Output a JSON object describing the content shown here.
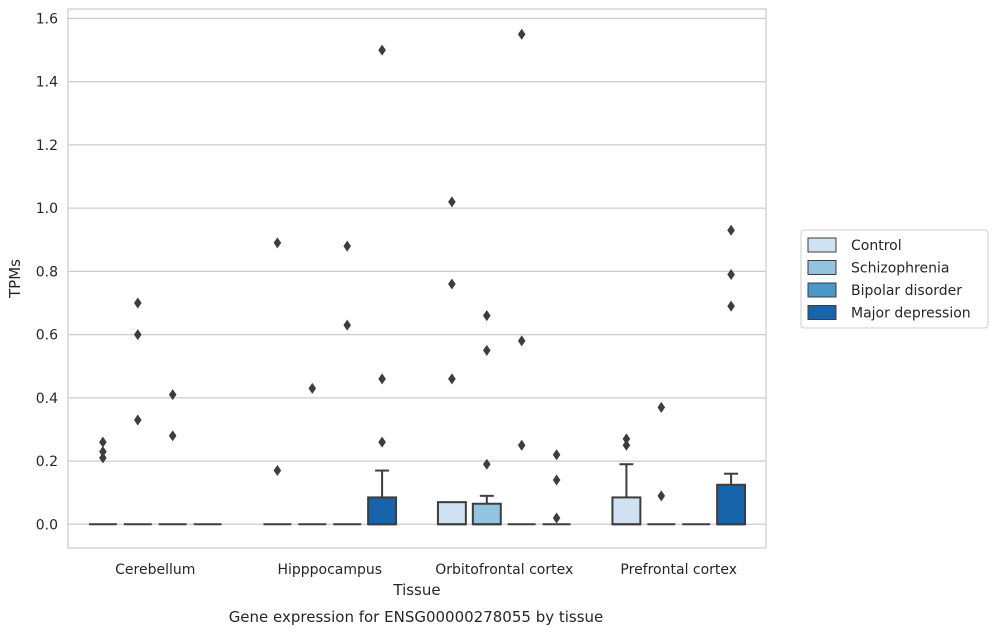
{
  "chart_data": {
    "type": "box",
    "title": "",
    "caption": "Gene expression for ENSG00000278055 by tissue",
    "xlabel": "Tissue",
    "ylabel": "TPMs",
    "ylim": [
      -0.075,
      1.63
    ],
    "yticks": [
      "0.0",
      "0.2",
      "0.4",
      "0.6",
      "0.8",
      "1.0",
      "1.2",
      "1.4",
      "1.6"
    ],
    "grid": "horizontal",
    "legend_position": "right",
    "categories": [
      "Cerebellum",
      "Hipppocampus",
      "Orbitofrontal cortex",
      "Prefrontal cortex"
    ],
    "series": [
      {
        "name": "Control",
        "color": "#d0e1f2",
        "boxes": [
          {
            "q1": 0,
            "median": 0,
            "q3": 0,
            "whisker_low": 0,
            "whisker_high": 0,
            "outliers": [
              0.21,
              0.23,
              0.26
            ]
          },
          {
            "q1": 0,
            "median": 0,
            "q3": 0,
            "whisker_low": 0,
            "whisker_high": 0,
            "outliers": [
              0.17,
              0.89
            ]
          },
          {
            "q1": 0,
            "median": 0,
            "q3": 0.07,
            "whisker_low": 0,
            "whisker_high": 0.07,
            "outliers": [
              0.46,
              0.76,
              1.02
            ]
          },
          {
            "q1": 0,
            "median": 0,
            "q3": 0.085,
            "whisker_low": 0,
            "whisker_high": 0.19,
            "outliers": [
              0.25,
              0.27
            ]
          }
        ]
      },
      {
        "name": "Schizophrenia",
        "color": "#94c4df",
        "boxes": [
          {
            "q1": 0,
            "median": 0,
            "q3": 0,
            "whisker_low": 0,
            "whisker_high": 0,
            "outliers": [
              0.33,
              0.6,
              0.7
            ]
          },
          {
            "q1": 0,
            "median": 0,
            "q3": 0,
            "whisker_low": 0,
            "whisker_high": 0,
            "outliers": [
              0.43
            ]
          },
          {
            "q1": 0,
            "median": 0,
            "q3": 0.065,
            "whisker_low": 0,
            "whisker_high": 0.09,
            "outliers": [
              0.19,
              0.55,
              0.66
            ]
          },
          {
            "q1": 0,
            "median": 0,
            "q3": 0,
            "whisker_low": 0,
            "whisker_high": 0,
            "outliers": [
              0.09,
              0.37
            ]
          }
        ]
      },
      {
        "name": "Bipolar disorder",
        "color": "#4a98c9",
        "boxes": [
          {
            "q1": 0,
            "median": 0,
            "q3": 0,
            "whisker_low": 0,
            "whisker_high": 0,
            "outliers": [
              0.28,
              0.41
            ]
          },
          {
            "q1": 0,
            "median": 0,
            "q3": 0,
            "whisker_low": 0,
            "whisker_high": 0,
            "outliers": [
              0.63,
              0.88
            ]
          },
          {
            "q1": 0,
            "median": 0,
            "q3": 0,
            "whisker_low": 0,
            "whisker_high": 0,
            "outliers": [
              0.25,
              0.58,
              1.55
            ]
          },
          {
            "q1": 0,
            "median": 0,
            "q3": 0,
            "whisker_low": 0,
            "whisker_high": 0,
            "outliers": []
          }
        ]
      },
      {
        "name": "Major depression",
        "color": "#1764ab",
        "boxes": [
          {
            "q1": 0,
            "median": 0,
            "q3": 0,
            "whisker_low": 0,
            "whisker_high": 0,
            "outliers": []
          },
          {
            "q1": 0,
            "median": 0,
            "q3": 0.085,
            "whisker_low": 0,
            "whisker_high": 0.17,
            "outliers": [
              0.26,
              0.46,
              1.5
            ]
          },
          {
            "q1": 0,
            "median": 0,
            "q3": 0,
            "whisker_low": 0,
            "whisker_high": 0,
            "outliers": [
              0.02,
              0.14,
              0.22
            ]
          },
          {
            "q1": 0,
            "median": 0,
            "q3": 0.125,
            "whisker_low": 0,
            "whisker_high": 0.16,
            "outliers": [
              0.69,
              0.79,
              0.93
            ]
          }
        ]
      }
    ]
  }
}
